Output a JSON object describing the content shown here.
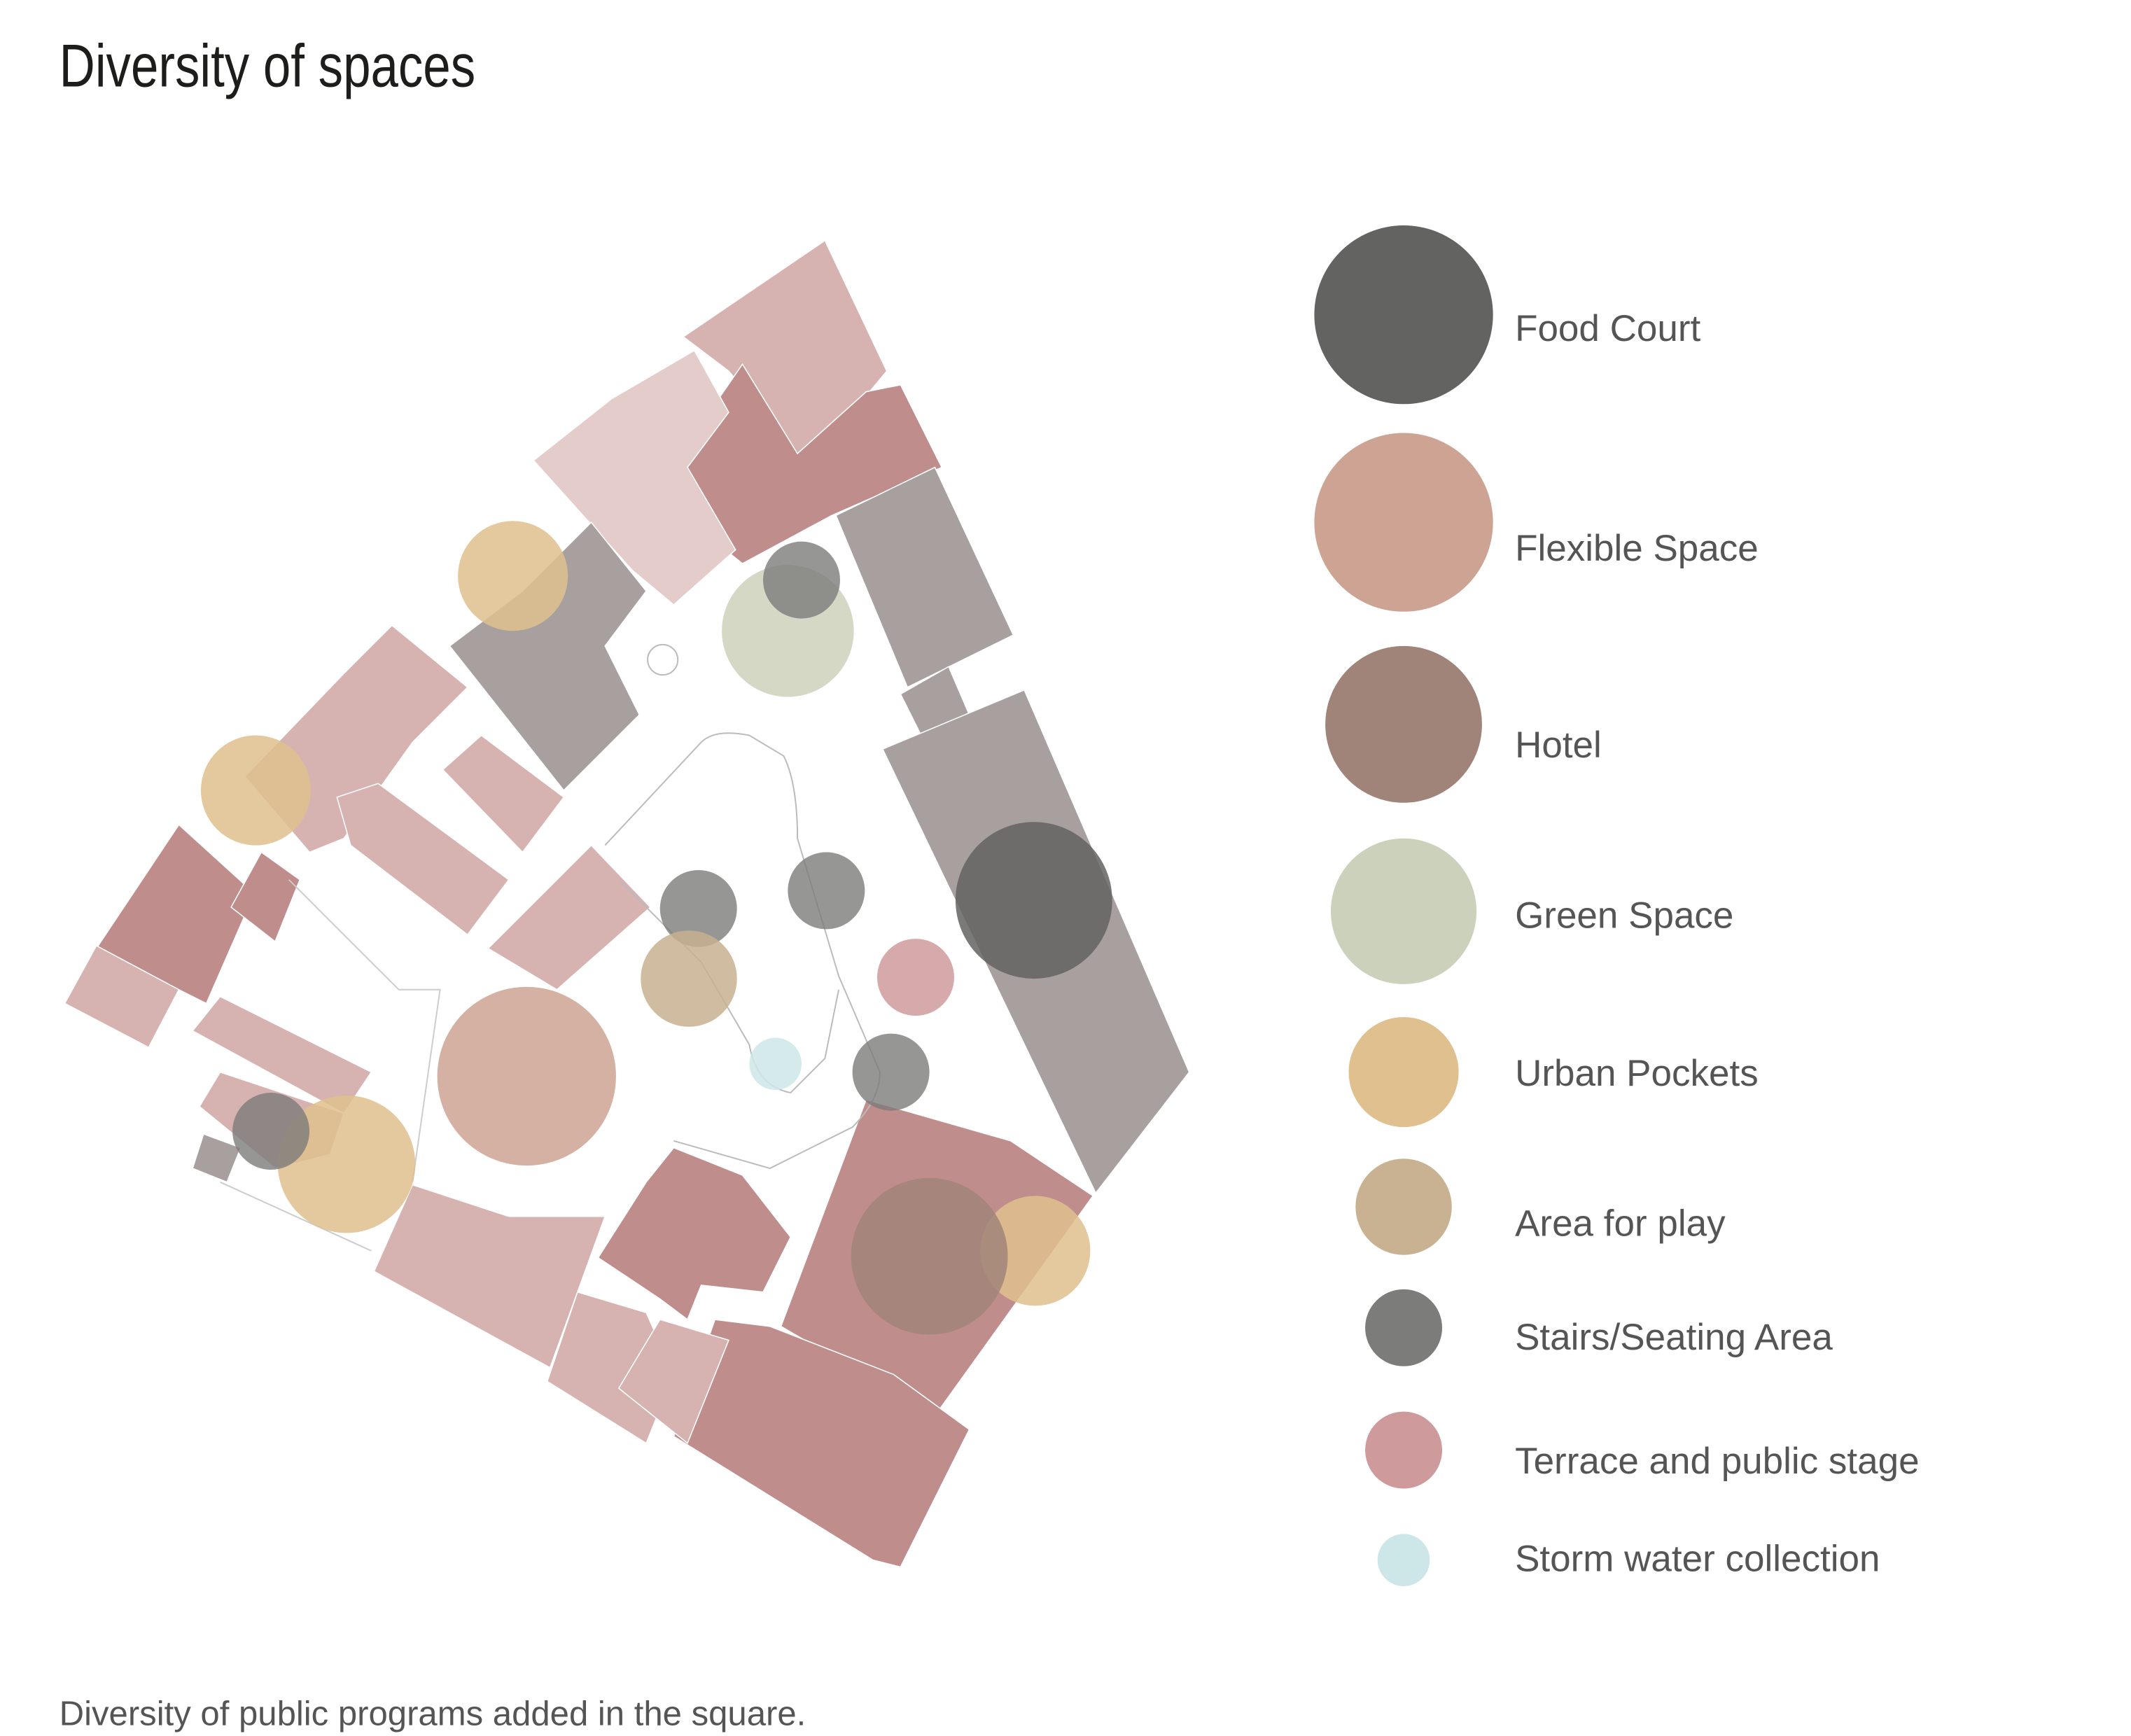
{
  "title": "Diversity of spaces",
  "caption": "Diversity of public programs added in the square.",
  "legend": [
    {
      "key": "food",
      "label": "Food Court",
      "color": "#636361"
    },
    {
      "key": "flex",
      "label": "Flexible Space",
      "color": "#cda393"
    },
    {
      "key": "hotel",
      "label": "Hotel",
      "color": "#a18479"
    },
    {
      "key": "green",
      "label": "Green Space",
      "color": "#ccd1bb"
    },
    {
      "key": "urban",
      "label": "Urban Pockets",
      "color": "#dfc08e"
    },
    {
      "key": "play",
      "label": "Area for play",
      "color": "#c8b291"
    },
    {
      "key": "stairs",
      "label": "Stairs/Seating Area",
      "color": "#7c7c7b"
    },
    {
      "key": "terrace",
      "label": "Terrace and public stage",
      "color": "#cf9a9c"
    },
    {
      "key": "storm",
      "label": "Storm water collection",
      "color": "#cde6e8"
    }
  ],
  "building_colors": {
    "pink": "#d6b3b1",
    "rose": "#c08d8d",
    "grey": "#a7a09e",
    "light": "#e4cccb"
  }
}
